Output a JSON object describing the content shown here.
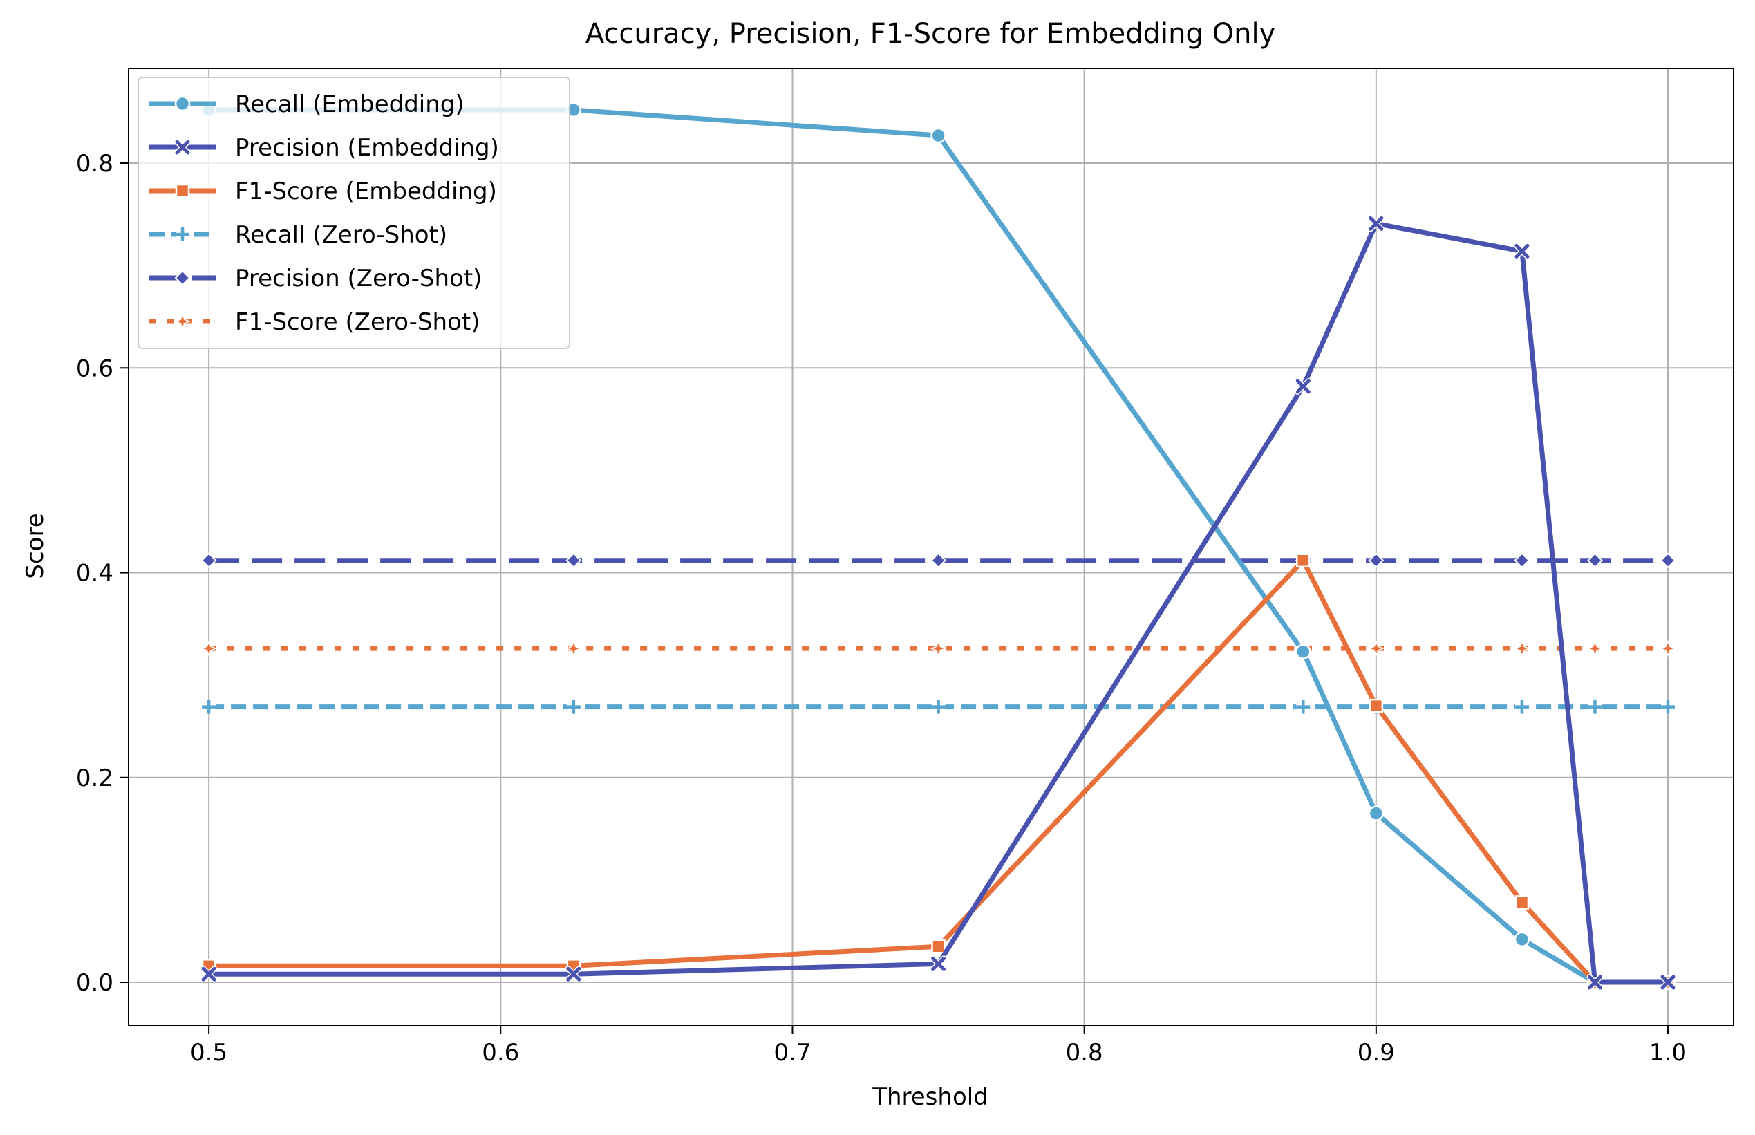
{
  "chart_data": {
    "type": "line",
    "title": "Accuracy, Precision, F1-Score for Embedding Only",
    "xlabel": "Threshold",
    "ylabel": "Score",
    "xlim": [
      0.4725,
      1.0225
    ],
    "ylim": [
      -0.0425,
      0.8925
    ],
    "x_ticks": [
      0.5,
      0.6,
      0.7,
      0.8,
      0.9,
      1.0
    ],
    "x_tick_labels": [
      "0.5",
      "0.6",
      "0.7",
      "0.8",
      "0.9",
      "1.0"
    ],
    "y_ticks": [
      0.0,
      0.2,
      0.4,
      0.6,
      0.8
    ],
    "y_tick_labels": [
      "0.0",
      "0.2",
      "0.4",
      "0.6",
      "0.8"
    ],
    "grid": true,
    "legend_position": "top-left",
    "x": [
      0.5,
      0.625,
      0.75,
      0.875,
      0.9,
      0.95,
      0.975,
      1.0
    ],
    "series": [
      {
        "name": "Recall (Embedding)",
        "color": "#56a5cf",
        "dash": "solid",
        "marker": "circle",
        "values": [
          0.852,
          0.852,
          0.827,
          0.323,
          0.165,
          0.042,
          0.0,
          0.0
        ]
      },
      {
        "name": "Precision (Embedding)",
        "color": "#4a52b0",
        "dash": "solid",
        "marker": "x",
        "values": [
          0.008,
          0.008,
          0.018,
          0.582,
          0.741,
          0.714,
          0.0,
          0.0
        ]
      },
      {
        "name": "F1-Score (Embedding)",
        "color": "#e8703a",
        "dash": "solid",
        "marker": "square",
        "values": [
          0.016,
          0.016,
          0.035,
          0.412,
          0.27,
          0.078,
          0.0,
          0.0
        ]
      },
      {
        "name": "Recall (Zero-Shot)",
        "color": "#56a5cf",
        "dash": "dashed",
        "marker": "plus",
        "values": [
          0.269,
          0.269,
          0.269,
          0.269,
          0.269,
          0.269,
          0.269,
          0.269
        ]
      },
      {
        "name": "Precision (Zero-Shot)",
        "color": "#4a52b0",
        "dash": "longdash",
        "marker": "diamond",
        "values": [
          0.412,
          0.412,
          0.412,
          0.412,
          0.412,
          0.412,
          0.412,
          0.412
        ]
      },
      {
        "name": "F1-Score (Zero-Shot)",
        "color": "#e8703a",
        "dash": "dotted",
        "marker": "star",
        "values": [
          0.326,
          0.326,
          0.326,
          0.326,
          0.326,
          0.326,
          0.326,
          0.326
        ]
      }
    ]
  }
}
